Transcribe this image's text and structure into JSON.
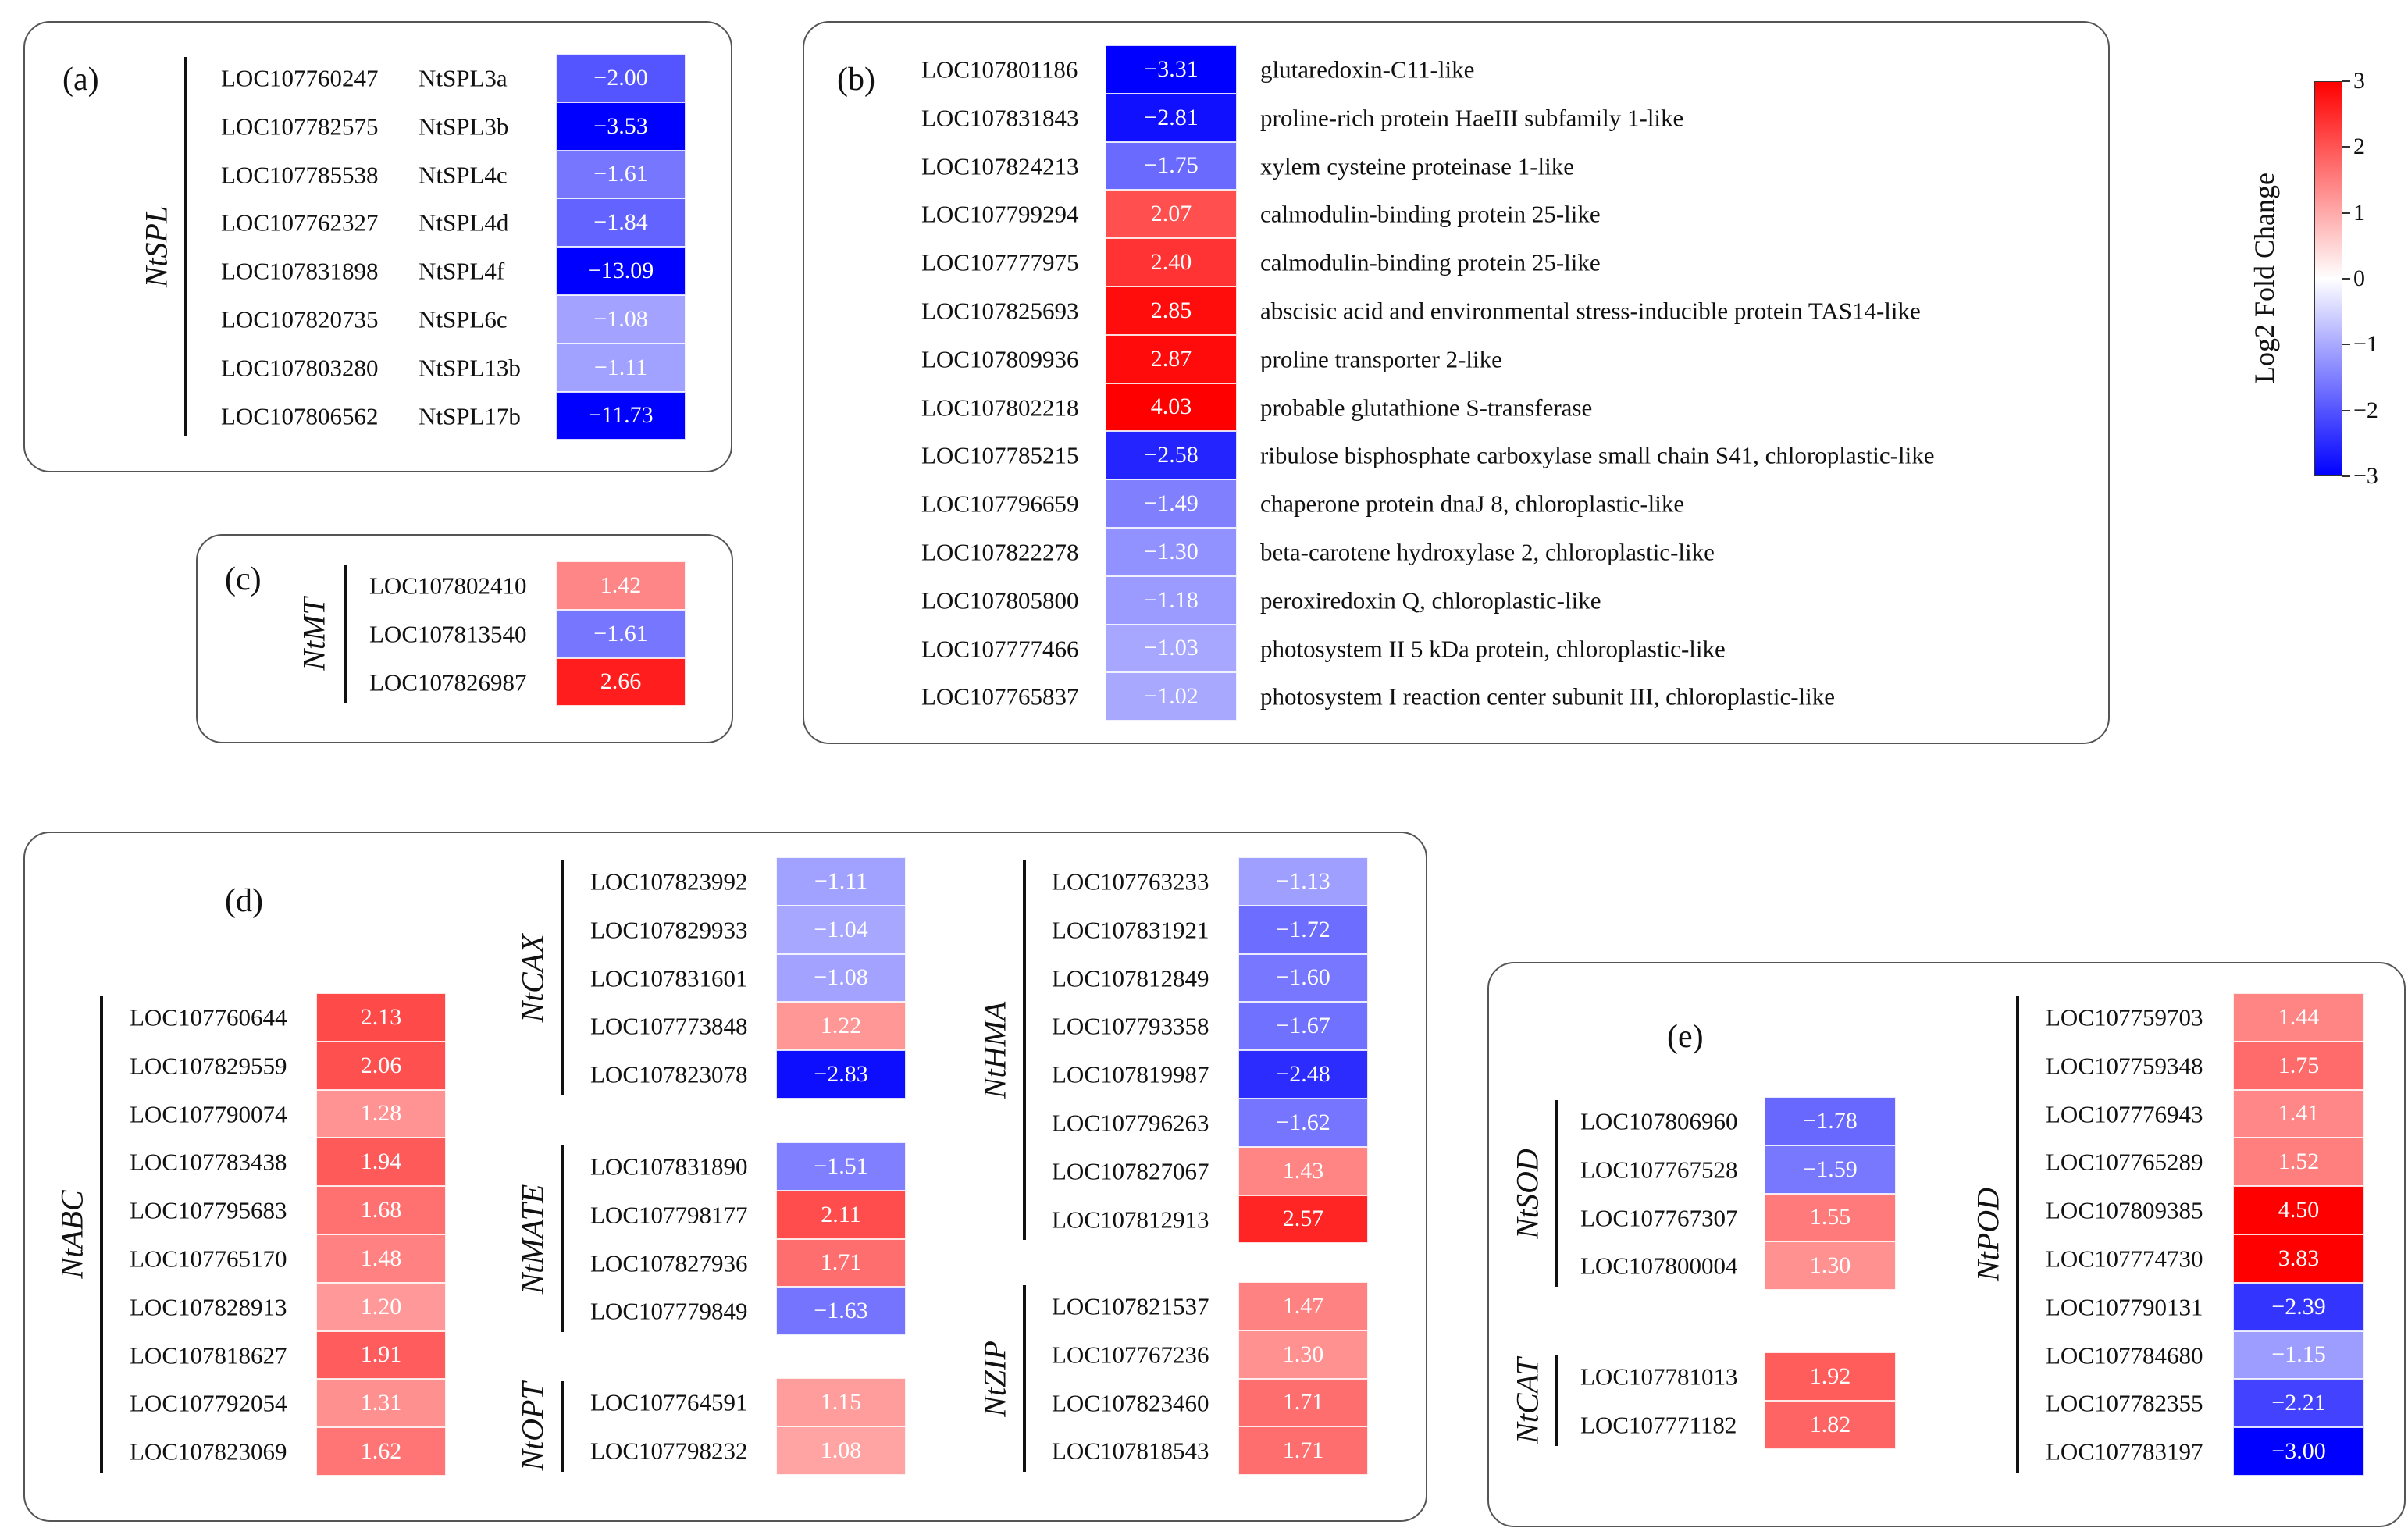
{
  "chart_data": {
    "type": "heatmap",
    "colorbar": {
      "title": "Log2 Fold Change",
      "range": [
        -3,
        3
      ],
      "ticks": [
        "3",
        "2",
        "1",
        "0",
        "−1",
        "−2",
        "−3"
      ],
      "low_color": "#0000ff",
      "mid_color": "#ffffff",
      "high_color": "#ff0000"
    },
    "panels": {
      "a": {
        "label": "(a)",
        "group": "NtSPL",
        "rows": [
          {
            "id": "LOC107760247",
            "name": "NtSPL3a",
            "value": -2.0,
            "text": "−2.00"
          },
          {
            "id": "LOC107782575",
            "name": "NtSPL3b",
            "value": -3.53,
            "text": "−3.53"
          },
          {
            "id": "LOC107785538",
            "name": "NtSPL4c",
            "value": -1.61,
            "text": "−1.61"
          },
          {
            "id": "LOC107762327",
            "name": "NtSPL4d",
            "value": -1.84,
            "text": "−1.84"
          },
          {
            "id": "LOC107831898",
            "name": "NtSPL4f",
            "value": -13.09,
            "text": "−13.09"
          },
          {
            "id": "LOC107820735",
            "name": "NtSPL6c",
            "value": -1.08,
            "text": "−1.08"
          },
          {
            "id": "LOC107803280",
            "name": "NtSPL13b",
            "value": -1.11,
            "text": "−1.11"
          },
          {
            "id": "LOC107806562",
            "name": "NtSPL17b",
            "value": -11.73,
            "text": "−11.73"
          }
        ]
      },
      "b": {
        "label": "(b)",
        "rows": [
          {
            "id": "LOC107801186",
            "value": -3.31,
            "text": "−3.31",
            "desc": "glutaredoxin-C11-like"
          },
          {
            "id": "LOC107831843",
            "value": -2.81,
            "text": "−2.81",
            "desc": "proline-rich protein HaeIII subfamily 1-like"
          },
          {
            "id": "LOC107824213",
            "value": -1.75,
            "text": "−1.75",
            "desc": "xylem cysteine proteinase 1-like"
          },
          {
            "id": "LOC107799294",
            "value": 2.07,
            "text": "2.07",
            "desc": "calmodulin-binding protein 25-like"
          },
          {
            "id": "LOC107777975",
            "value": 2.4,
            "text": "2.40",
            "desc": "calmodulin-binding protein 25-like"
          },
          {
            "id": "LOC107825693",
            "value": 2.85,
            "text": "2.85",
            "desc": "abscisic acid and environmental stress-inducible protein TAS14-like"
          },
          {
            "id": "LOC107809936",
            "value": 2.87,
            "text": "2.87",
            "desc": "proline transporter 2-like"
          },
          {
            "id": "LOC107802218",
            "value": 4.03,
            "text": "4.03",
            "desc": "probable glutathione S-transferase"
          },
          {
            "id": "LOC107785215",
            "value": -2.58,
            "text": "−2.58",
            "desc": "ribulose bisphosphate carboxylase small chain S41, chloroplastic-like"
          },
          {
            "id": "LOC107796659",
            "value": -1.49,
            "text": "−1.49",
            "desc": "chaperone protein dnaJ 8, chloroplastic-like"
          },
          {
            "id": "LOC107822278",
            "value": -1.3,
            "text": "−1.30",
            "desc": "beta-carotene hydroxylase 2, chloroplastic-like"
          },
          {
            "id": "LOC107805800",
            "value": -1.18,
            "text": "−1.18",
            "desc": "peroxiredoxin Q, chloroplastic-like"
          },
          {
            "id": "LOC107777466",
            "value": -1.03,
            "text": "−1.03",
            "desc": "photosystem II 5 kDa protein, chloroplastic-like"
          },
          {
            "id": "LOC107765837",
            "value": -1.02,
            "text": "−1.02",
            "desc": "photosystem I reaction center subunit III, chloroplastic-like"
          }
        ]
      },
      "c": {
        "label": "(c)",
        "group": "NtMT",
        "rows": [
          {
            "id": "LOC107802410",
            "value": 1.42,
            "text": "1.42"
          },
          {
            "id": "LOC107813540",
            "value": -1.61,
            "text": "−1.61"
          },
          {
            "id": "LOC107826987",
            "value": 2.66,
            "text": "2.66"
          }
        ]
      },
      "d": {
        "label": "(d)",
        "groups": {
          "NtABC": [
            {
              "id": "LOC107760644",
              "value": 2.13,
              "text": "2.13"
            },
            {
              "id": "LOC107829559",
              "value": 2.06,
              "text": "2.06"
            },
            {
              "id": "LOC107790074",
              "value": 1.28,
              "text": "1.28"
            },
            {
              "id": "LOC107783438",
              "value": 1.94,
              "text": "1.94"
            },
            {
              "id": "LOC107795683",
              "value": 1.68,
              "text": "1.68"
            },
            {
              "id": "LOC107765170",
              "value": 1.48,
              "text": "1.48"
            },
            {
              "id": "LOC107828913",
              "value": 1.2,
              "text": "1.20"
            },
            {
              "id": "LOC107818627",
              "value": 1.91,
              "text": "1.91"
            },
            {
              "id": "LOC107792054",
              "value": 1.31,
              "text": "1.31"
            },
            {
              "id": "LOC107823069",
              "value": 1.62,
              "text": "1.62"
            }
          ],
          "NtCAX": [
            {
              "id": "LOC107823992",
              "value": -1.11,
              "text": "−1.11"
            },
            {
              "id": "LOC107829933",
              "value": -1.04,
              "text": "−1.04"
            },
            {
              "id": "LOC107831601",
              "value": -1.08,
              "text": "−1.08"
            },
            {
              "id": "LOC107773848",
              "value": 1.22,
              "text": "1.22"
            },
            {
              "id": "LOC107823078",
              "value": -2.83,
              "text": "−2.83"
            }
          ],
          "NtMATE": [
            {
              "id": "LOC107831890",
              "value": -1.51,
              "text": "−1.51"
            },
            {
              "id": "LOC107798177",
              "value": 2.11,
              "text": "2.11"
            },
            {
              "id": "LOC107827936",
              "value": 1.71,
              "text": "1.71"
            },
            {
              "id": "LOC107779849",
              "value": -1.63,
              "text": "−1.63"
            }
          ],
          "NtOPT": [
            {
              "id": "LOC107764591",
              "value": 1.15,
              "text": "1.15"
            },
            {
              "id": "LOC107798232",
              "value": 1.08,
              "text": "1.08"
            }
          ],
          "NtHMA": [
            {
              "id": "LOC107763233",
              "value": -1.13,
              "text": "−1.13"
            },
            {
              "id": "LOC107831921",
              "value": -1.72,
              "text": "−1.72"
            },
            {
              "id": "LOC107812849",
              "value": -1.6,
              "text": "−1.60"
            },
            {
              "id": "LOC107793358",
              "value": -1.67,
              "text": "−1.67"
            },
            {
              "id": "LOC107819987",
              "value": -2.48,
              "text": "−2.48"
            },
            {
              "id": "LOC107796263",
              "value": -1.62,
              "text": "−1.62"
            },
            {
              "id": "LOC107827067",
              "value": 1.43,
              "text": "1.43"
            },
            {
              "id": "LOC107812913",
              "value": 2.57,
              "text": "2.57"
            }
          ],
          "NtZIP": [
            {
              "id": "LOC107821537",
              "value": 1.47,
              "text": "1.47"
            },
            {
              "id": "LOC107767236",
              "value": 1.3,
              "text": "1.30"
            },
            {
              "id": "LOC107823460",
              "value": 1.71,
              "text": "1.71"
            },
            {
              "id": "LOC107818543",
              "value": 1.71,
              "text": "1.71"
            }
          ]
        }
      },
      "e": {
        "label": "(e)",
        "groups": {
          "NtSOD": [
            {
              "id": "LOC107806960",
              "value": -1.78,
              "text": "−1.78"
            },
            {
              "id": "LOC107767528",
              "value": -1.59,
              "text": "−1.59"
            },
            {
              "id": "LOC107767307",
              "value": 1.55,
              "text": "1.55"
            },
            {
              "id": "LOC107800004",
              "value": 1.3,
              "text": "1.30"
            }
          ],
          "NtCAT": [
            {
              "id": "LOC107781013",
              "value": 1.92,
              "text": "1.92"
            },
            {
              "id": "LOC107771182",
              "value": 1.82,
              "text": "1.82"
            }
          ],
          "NtPOD": [
            {
              "id": "LOC107759703",
              "value": 1.44,
              "text": "1.44"
            },
            {
              "id": "LOC107759348",
              "value": 1.75,
              "text": "1.75"
            },
            {
              "id": "LOC107776943",
              "value": 1.41,
              "text": "1.41"
            },
            {
              "id": "LOC107765289",
              "value": 1.52,
              "text": "1.52"
            },
            {
              "id": "LOC107809385",
              "value": 4.5,
              "text": "4.50"
            },
            {
              "id": "LOC107774730",
              "value": 3.83,
              "text": "3.83"
            },
            {
              "id": "LOC107790131",
              "value": -2.39,
              "text": "−2.39"
            },
            {
              "id": "LOC107784680",
              "value": -1.15,
              "text": "−1.15"
            },
            {
              "id": "LOC107782355",
              "value": -2.21,
              "text": "−2.21"
            },
            {
              "id": "LOC107783197",
              "value": -3.0,
              "text": "−3.00"
            }
          ]
        }
      }
    }
  }
}
